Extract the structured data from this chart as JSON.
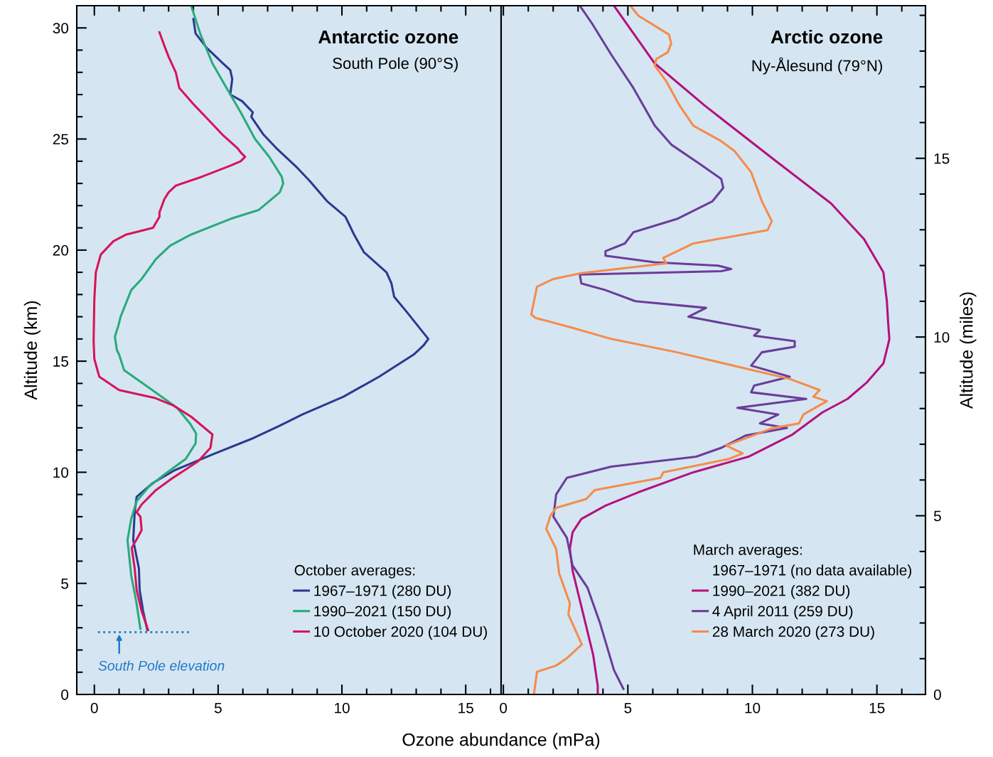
{
  "chart_data": [
    {
      "type": "line",
      "title": "Antarctic ozone",
      "subtitle": "South Pole (90°S)",
      "xlabel": "Ozone abundance (mPa)",
      "ylabel": "Altitude (km)",
      "legend_title": "October averages:",
      "legend": "bottom right",
      "grid": false,
      "marker": "none",
      "line_style": "solid",
      "xlim": [
        -0.71,
        16.43
      ],
      "ylim": [
        0,
        31
      ],
      "xticks": [
        0,
        {
          "value": 1,
          "label": null
        },
        {
          "value": 2,
          "label": null
        },
        {
          "value": 3,
          "label": null
        },
        {
          "value": 4,
          "label": null
        },
        5,
        {
          "value": 6,
          "label": null
        },
        {
          "value": 7,
          "label": null
        },
        {
          "value": 8,
          "label": null
        },
        {
          "value": 9,
          "label": null
        },
        10,
        {
          "value": 11,
          "label": null
        },
        {
          "value": 12,
          "label": null
        },
        {
          "value": 13,
          "label": null
        },
        {
          "value": 14,
          "label": null
        },
        15,
        {
          "value": 16,
          "label": null
        }
      ],
      "yticks": [
        0,
        {
          "value": 1,
          "label": null
        },
        {
          "value": 2,
          "label": null
        },
        {
          "value": 3,
          "label": null
        },
        {
          "value": 4,
          "label": null
        },
        5,
        {
          "value": 6,
          "label": null
        },
        {
          "value": 7,
          "label": null
        },
        {
          "value": 8,
          "label": null
        },
        {
          "value": 9,
          "label": null
        },
        10,
        {
          "value": 11,
          "label": null
        },
        {
          "value": 12,
          "label": null
        },
        {
          "value": 13,
          "label": null
        },
        {
          "value": 14,
          "label": null
        },
        15,
        {
          "value": 16,
          "label": null
        },
        {
          "value": 17,
          "label": null
        },
        {
          "value": 18,
          "label": null
        },
        {
          "value": 19,
          "label": null
        },
        20,
        {
          "value": 21,
          "label": null
        },
        {
          "value": 22,
          "label": null
        },
        {
          "value": 23,
          "label": null
        },
        {
          "value": 24,
          "label": null
        },
        25,
        {
          "value": 26,
          "label": null
        },
        {
          "value": 27,
          "label": null
        },
        {
          "value": 28,
          "label": null
        },
        {
          "value": 29,
          "label": null
        },
        30
      ],
      "ref_lines": [
        {
          "axis": "y",
          "value": 2.8,
          "label": "South Pole elevation",
          "color": "#1f78c8",
          "line_style": "dotted"
        }
      ],
      "series": [
        {
          "name": "1967–1971 (280 DU)",
          "color": "#2b3990",
          "x": [
            4.0,
            4.09,
            4.54,
            5.2,
            5.49,
            5.57,
            5.49,
            5.97,
            6.4,
            6.34,
            6.83,
            7.34,
            8.2,
            8.71,
            9.4,
            10.14,
            10.49,
            10.89,
            11.8,
            12.0,
            12.11,
            12.63,
            13.06,
            13.49,
            13.29,
            12.9,
            12.34,
            11.5,
            10.06,
            8.4,
            7.49,
            6.34,
            4.77,
            3.26,
            2.34,
            1.71,
            1.63,
            1.57,
            1.8,
            1.83,
            1.97,
            2.14
          ],
          "values": [
            30.4,
            29.75,
            29.1,
            28.4,
            28.1,
            27.7,
            27.0,
            26.7,
            26.2,
            26.0,
            25.2,
            24.6,
            23.7,
            23.1,
            22.2,
            21.5,
            20.7,
            19.9,
            19.0,
            18.5,
            17.9,
            17.2,
            16.6,
            16.0,
            15.7,
            15.3,
            14.9,
            14.3,
            13.4,
            12.6,
            12.1,
            11.5,
            10.8,
            10.1,
            9.5,
            8.9,
            8.2,
            6.95,
            5.67,
            4.7,
            3.75,
            2.9
          ]
        },
        {
          "name": "1990–2021 (150 DU)",
          "color": "#2aaa7a",
          "x": [
            3.91,
            4.29,
            4.77,
            5.34,
            5.91,
            6.49,
            7.06,
            7.57,
            7.63,
            7.49,
            6.63,
            5.49,
            3.91,
            3.06,
            2.49,
            1.91,
            1.49,
            1.06,
            0.97,
            0.83,
            0.91,
            1.0,
            1.2,
            2.34,
            3.34,
            3.86,
            4.11,
            4.09,
            3.69,
            2.83,
            2.2,
            1.71,
            1.49,
            1.34,
            1.49,
            1.69,
            1.86
          ],
          "values": [
            31.0,
            29.7,
            28.4,
            27.3,
            26.2,
            25.0,
            24.2,
            23.3,
            23.0,
            22.6,
            21.8,
            21.4,
            20.7,
            20.2,
            19.6,
            18.7,
            18.2,
            17.0,
            16.6,
            16.1,
            15.5,
            15.3,
            14.6,
            13.7,
            12.9,
            12.2,
            11.75,
            11.3,
            10.6,
            9.9,
            9.35,
            8.7,
            7.9,
            6.95,
            5.35,
            4.2,
            2.95
          ]
        },
        {
          "name": "10 October 2020 (104 DU)",
          "color": "#d6145a",
          "x": [
            2.63,
            2.86,
            3.0,
            3.29,
            3.43,
            4.06,
            4.49,
            5.17,
            5.77,
            5.91,
            6.09,
            5.91,
            5.49,
            4.34,
            3.29,
            3.0,
            2.83,
            2.63,
            2.63,
            2.37,
            1.29,
            0.77,
            0.26,
            0.06,
            0.0,
            -0.03,
            0.0,
            0.2,
            1.0,
            2.43,
            3.2,
            3.91,
            4.77,
            4.69,
            4.2,
            3.11,
            2.49,
            1.91,
            1.71,
            1.86,
            1.91,
            1.77,
            1.51,
            1.63,
            1.71,
            1.91,
            2.17
          ],
          "values": [
            29.8,
            29.1,
            28.7,
            28.0,
            27.3,
            26.5,
            26.0,
            25.2,
            24.6,
            24.4,
            24.2,
            24.0,
            23.8,
            23.3,
            22.9,
            22.6,
            22.3,
            21.7,
            21.5,
            21.0,
            20.7,
            20.4,
            19.8,
            19.0,
            17.8,
            15.9,
            15.1,
            14.3,
            13.7,
            13.35,
            13.0,
            12.5,
            11.7,
            11.1,
            10.5,
            9.7,
            9.2,
            8.55,
            8.2,
            8.0,
            7.4,
            7.1,
            6.6,
            5.67,
            4.7,
            3.75,
            2.9
          ]
        }
      ]
    },
    {
      "type": "line",
      "title": "Arctic ozone",
      "subtitle": "Ny-Ålesund (79°N)",
      "y2label": "Altitude (miles)",
      "legend_title": "March averages:",
      "legend": "bottom right",
      "grid": false,
      "marker": "none",
      "line_style": "solid",
      "annotations": [
        "1967–1971 (no data available)"
      ],
      "xlim": [
        -0.09,
        16.95
      ],
      "ylim": [
        0,
        31
      ],
      "y2lim": [
        0,
        19.27
      ],
      "xticks": [
        0,
        {
          "value": 1,
          "label": null
        },
        {
          "value": 2,
          "label": null
        },
        {
          "value": 3,
          "label": null
        },
        {
          "value": 4,
          "label": null
        },
        5,
        {
          "value": 6,
          "label": null
        },
        {
          "value": 7,
          "label": null
        },
        {
          "value": 8,
          "label": null
        },
        {
          "value": 9,
          "label": null
        },
        10,
        {
          "value": 11,
          "label": null
        },
        {
          "value": 12,
          "label": null
        },
        {
          "value": 13,
          "label": null
        },
        {
          "value": 14,
          "label": null
        },
        15,
        {
          "value": 16,
          "label": null
        }
      ],
      "y2ticks": [
        0,
        {
          "value": 1,
          "label": null
        },
        {
          "value": 2,
          "label": null
        },
        {
          "value": 3,
          "label": null
        },
        {
          "value": 4,
          "label": null
        },
        5,
        {
          "value": 6,
          "label": null
        },
        {
          "value": 7,
          "label": null
        },
        {
          "value": 8,
          "label": null
        },
        {
          "value": 9,
          "label": null
        },
        10,
        {
          "value": 11,
          "label": null
        },
        {
          "value": 12,
          "label": null
        },
        {
          "value": 13,
          "label": null
        },
        {
          "value": 14,
          "label": null
        },
        15,
        {
          "value": 16,
          "label": null
        },
        {
          "value": 17,
          "label": null
        },
        {
          "value": 18,
          "label": null
        },
        {
          "value": 19,
          "label": null
        }
      ],
      "series": [
        {
          "name": "1990–2021 (382 DU)",
          "color": "#b5117e",
          "x": [
            4.44,
            6.08,
            8.09,
            10.95,
            13.16,
            14.48,
            15.26,
            15.4,
            15.45,
            15.5,
            15.46,
            15.26,
            14.6,
            13.82,
            12.82,
            11.61,
            9.84,
            7.63,
            5.42,
            4.1,
            3.13,
            2.78,
            2.67,
            2.78,
            3.21,
            3.61,
            3.79,
            3.79
          ],
          "values": [
            31.0,
            28.4,
            26.5,
            24.0,
            22.1,
            20.5,
            19.0,
            17.7,
            16.75,
            16.0,
            15.8,
            14.9,
            14.05,
            13.3,
            12.7,
            11.7,
            10.7,
            10.0,
            9.1,
            8.5,
            7.9,
            7.3,
            6.55,
            5.57,
            3.6,
            1.76,
            0.38,
            0
          ]
        },
        {
          "name": "4 April 2011 (259 DU)",
          "color": "#6a3d9a",
          "x": [
            3.07,
            3.56,
            4.33,
            5.22,
            6.08,
            6.74,
            7.86,
            8.75,
            8.83,
            8.4,
            6.97,
            5.22,
            4.88,
            4.1,
            4.1,
            6.08,
            8.63,
            9.15,
            8.75,
            3.07,
            3.13,
            4.1,
            5.3,
            8.14,
            7.43,
            10.3,
            10.07,
            11.7,
            11.7,
            10.38,
            9.95,
            11.5,
            10.07,
            9.95,
            12.16,
            9.4,
            11.04,
            10.3,
            11.39,
            9.72,
            8.75,
            7.74,
            4.33,
            2.55,
            2.12,
            2.01,
            2.55,
            2.78,
            3.38,
            3.87,
            4.44,
            4.82
          ],
          "values": [
            31.0,
            30.2,
            28.8,
            27.3,
            25.6,
            24.75,
            23.9,
            23.2,
            22.8,
            22.2,
            21.4,
            20.8,
            20.3,
            19.95,
            19.75,
            19.45,
            19.3,
            19.15,
            19.05,
            18.9,
            18.5,
            18.2,
            17.7,
            17.4,
            17.0,
            16.4,
            16.15,
            15.9,
            15.65,
            15.4,
            14.8,
            14.3,
            13.9,
            13.6,
            13.3,
            12.9,
            12.6,
            12.2,
            12.0,
            11.65,
            11.1,
            10.7,
            10.25,
            9.75,
            9.0,
            8.0,
            7.05,
            5.8,
            4.8,
            3.25,
            1.1,
            0.25
          ]
        },
        {
          "name": "28 March 2020 (273 DU)",
          "color": "#f68b4b",
          "x": [
            5.1,
            5.42,
            6.65,
            6.74,
            6.6,
            6.14,
            6.08,
            6.54,
            7.08,
            7.63,
            8.75,
            9.29,
            9.95,
            10.38,
            10.78,
            10.61,
            7.63,
            6.42,
            6.54,
            3.13,
            2.01,
            1.35,
            1.12,
            1.29,
            2.78,
            4.33,
            6.97,
            9.61,
            11.5,
            12.7,
            12.45,
            12.99,
            12.05,
            11.87,
            10.84,
            8.95,
            9.61,
            9.06,
            6.42,
            6.31,
            3.67,
            3.33,
            2.12,
            1.89,
            1.72,
            2.12,
            2.24,
            2.67,
            2.61,
            3.15,
            2.55,
            2.12,
            1.35,
            1.23
          ],
          "values": [
            31.0,
            30.55,
            29.7,
            29.3,
            28.9,
            28.6,
            28.3,
            27.6,
            26.5,
            25.6,
            24.9,
            24.45,
            23.5,
            22.2,
            21.3,
            20.9,
            20.3,
            19.65,
            19.4,
            18.96,
            18.7,
            18.35,
            17.1,
            16.95,
            16.5,
            16.0,
            15.4,
            14.7,
            14.2,
            13.7,
            13.4,
            13.2,
            12.6,
            12.2,
            12.0,
            11.2,
            10.85,
            10.6,
            10.0,
            9.75,
            9.2,
            8.8,
            8.4,
            8.05,
            7.45,
            6.55,
            5.45,
            4.1,
            3.6,
            2.25,
            1.63,
            1.3,
            1.02,
            0.03
          ]
        }
      ]
    }
  ]
}
